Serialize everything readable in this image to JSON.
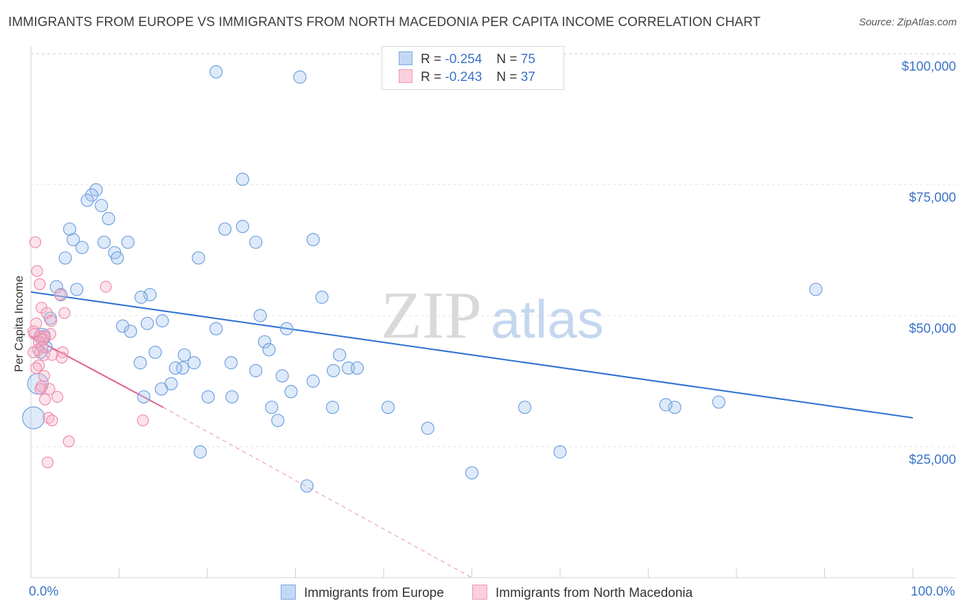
{
  "title": "IMMIGRANTS FROM EUROPE VS IMMIGRANTS FROM NORTH MACEDONIA PER CAPITA INCOME CORRELATION CHART",
  "source": "Source: ZipAtlas.com",
  "watermark": {
    "zip": "ZIP",
    "atlas": "atlas"
  },
  "legend": {
    "r_label": "R =",
    "n_label": "N =",
    "europe": {
      "r": "-0.254",
      "n": "75"
    },
    "macedonia": {
      "r": "-0.243",
      "n": "37"
    }
  },
  "chart_data": {
    "type": "scatter",
    "title": "IMMIGRANTS FROM EUROPE VS IMMIGRANTS FROM NORTH MACEDONIA PER CAPITA INCOME CORRELATION CHART",
    "xlabel": "",
    "ylabel": "Per Capita Income",
    "xlim": [
      0,
      100
    ],
    "ylim": [
      0,
      105000
    ],
    "x_tick_labels": [
      "0.0%",
      "100.0%"
    ],
    "y_ticks": [
      {
        "value": 25000,
        "label": "$25,000"
      },
      {
        "value": 50000,
        "label": "$50,000"
      },
      {
        "value": 75000,
        "label": "$75,000"
      },
      {
        "value": 100000,
        "label": "$100,000"
      }
    ],
    "colors": {
      "europe": "#6e9fe0",
      "europe_line": "#2a6fd4",
      "macedonia": "#ef8aaa",
      "macedonia_line": "#e0608a"
    },
    "series": [
      {
        "name": "Immigrants from Europe",
        "trend": {
          "x": [
            0,
            100
          ],
          "y": [
            54500,
            30500
          ]
        },
        "points": [
          [
            21,
            96500
          ],
          [
            30.5,
            95500
          ],
          [
            24,
            76000
          ],
          [
            7.4,
            74000
          ],
          [
            6.9,
            73000
          ],
          [
            6.4,
            72000
          ],
          [
            8,
            71000
          ],
          [
            8.8,
            68500
          ],
          [
            4.4,
            66500
          ],
          [
            22,
            66500
          ],
          [
            24,
            67000
          ],
          [
            32,
            64500
          ],
          [
            4.8,
            64500
          ],
          [
            8.3,
            64000
          ],
          [
            11,
            64000
          ],
          [
            25.5,
            64000
          ],
          [
            5.8,
            63000
          ],
          [
            9.5,
            62000
          ],
          [
            9.8,
            61000
          ],
          [
            3.9,
            61000
          ],
          [
            19,
            61000
          ],
          [
            2.9,
            55500
          ],
          [
            5.2,
            55000
          ],
          [
            3.4,
            54000
          ],
          [
            13.5,
            54000
          ],
          [
            12.5,
            53500
          ],
          [
            33,
            53500
          ],
          [
            2.2,
            49500
          ],
          [
            26,
            50000
          ],
          [
            14.9,
            49000
          ],
          [
            13.2,
            48500
          ],
          [
            10.4,
            48000
          ],
          [
            11.3,
            47000
          ],
          [
            21,
            47500
          ],
          [
            29,
            47500
          ],
          [
            1.4,
            46000
          ],
          [
            26.5,
            45000
          ],
          [
            1.7,
            44000
          ],
          [
            27,
            43500
          ],
          [
            14.1,
            43000
          ],
          [
            1.1,
            43000
          ],
          [
            35,
            42500
          ],
          [
            17.4,
            42500
          ],
          [
            12.4,
            41000
          ],
          [
            18.5,
            41000
          ],
          [
            22.7,
            41000
          ],
          [
            17.2,
            40000
          ],
          [
            16.4,
            40000
          ],
          [
            36,
            40000
          ],
          [
            37,
            40000
          ],
          [
            25.5,
            39500
          ],
          [
            34.3,
            39500
          ],
          [
            28.5,
            38500
          ],
          [
            32,
            37500
          ],
          [
            15.9,
            37000
          ],
          [
            14.8,
            36000
          ],
          [
            29.5,
            35500
          ],
          [
            20.1,
            34500
          ],
          [
            22.8,
            34500
          ],
          [
            12.8,
            34500
          ],
          [
            27.3,
            32500
          ],
          [
            34.2,
            32500
          ],
          [
            40.5,
            32500
          ],
          [
            56,
            32500
          ],
          [
            73,
            32500
          ],
          [
            72,
            33000
          ],
          [
            78,
            33500
          ],
          [
            89,
            55000
          ],
          [
            28,
            30000
          ],
          [
            45,
            28500
          ],
          [
            19.2,
            24000
          ],
          [
            60,
            24000
          ],
          [
            50,
            20000
          ],
          [
            31.3,
            17500
          ],
          [
            0.3,
            30500
          ]
        ]
      },
      {
        "name": "Immigrants from North Macedonia",
        "trend": {
          "x": [
            0,
            15
          ],
          "y": [
            46000,
            32500
          ]
        },
        "trend_extended": {
          "x": [
            15,
            50
          ],
          "y": [
            32500,
            0
          ]
        },
        "points": [
          [
            0.5,
            64000
          ],
          [
            0.7,
            58500
          ],
          [
            1.0,
            56000
          ],
          [
            8.5,
            55500
          ],
          [
            3.3,
            54000
          ],
          [
            1.2,
            51500
          ],
          [
            1.8,
            50500
          ],
          [
            3.8,
            50500
          ],
          [
            2.3,
            49000
          ],
          [
            0.6,
            48500
          ],
          [
            0.4,
            46500
          ],
          [
            1.1,
            46000
          ],
          [
            1.6,
            46000
          ],
          [
            1.4,
            45500
          ],
          [
            0.9,
            45000
          ],
          [
            1.3,
            44000
          ],
          [
            0.8,
            43500
          ],
          [
            3.6,
            43000
          ],
          [
            0.3,
            43000
          ],
          [
            1.5,
            42500
          ],
          [
            2.4,
            42500
          ],
          [
            3.5,
            42000
          ],
          [
            0.9,
            40500
          ],
          [
            1.5,
            38500
          ],
          [
            1.2,
            36500
          ],
          [
            2.1,
            36000
          ],
          [
            3.0,
            34500
          ],
          [
            1.6,
            34000
          ],
          [
            2.0,
            30500
          ],
          [
            2.4,
            30000
          ],
          [
            12.7,
            30000
          ],
          [
            4.3,
            26000
          ],
          [
            1.9,
            22000
          ],
          [
            0.6,
            40000
          ],
          [
            2.2,
            46500
          ],
          [
            0.3,
            47000
          ],
          [
            1.1,
            36000
          ]
        ]
      }
    ]
  },
  "bottom_legend": {
    "europe": "Immigrants from Europe",
    "macedonia": "Immigrants from North Macedonia"
  }
}
